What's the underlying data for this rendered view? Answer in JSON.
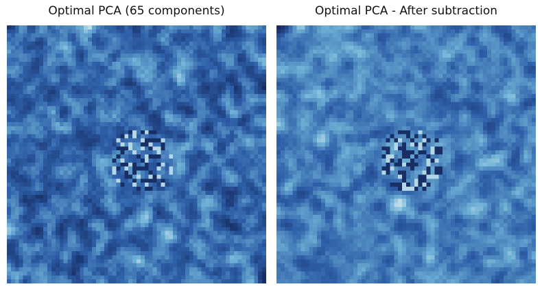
{
  "figure": {
    "panels": [
      {
        "title": "Optimal PCA (65 components)"
      },
      {
        "title": "Optimal PCA - After subtraction"
      }
    ],
    "colormap": {
      "dark": "#0e1a4a",
      "mid": "#2e5fa8",
      "light": "#6fb1d6",
      "bright": "#e8f4f4"
    }
  }
}
